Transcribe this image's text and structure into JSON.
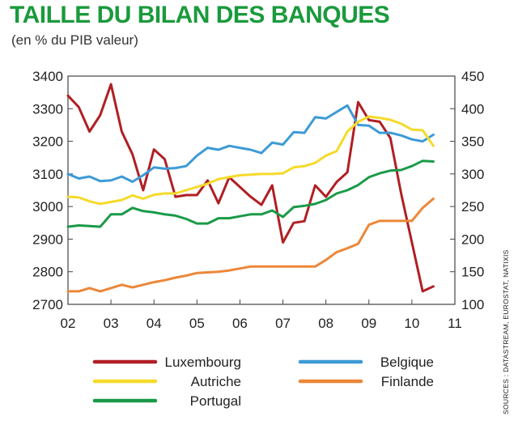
{
  "header": {
    "title": "TAILLE DU BILAN DES BANQUES",
    "subtitle": "(en % du PIB valeur)"
  },
  "sources": "SOURCES : DATASTREAM, EUROSTAT, NATIXIS",
  "colors": {
    "title": "#1a9a3c",
    "Luxembourg": "#b01f24",
    "Belgique": "#3d9ad6",
    "Autriche": "#f5da2a",
    "Finlande": "#ec8738",
    "Portugal": "#1a9a48"
  },
  "chart_data": {
    "type": "line",
    "title": "TAILLE DU BILAN DES BANQUES",
    "subtitle": "(en % du PIB valeur)",
    "x_ticks": [
      "02",
      "03",
      "04",
      "05",
      "06",
      "07",
      "08",
      "09",
      "10",
      "11"
    ],
    "xlim": [
      2002,
      2011
    ],
    "y_left": {
      "ticks": [
        2700,
        2800,
        2900,
        3000,
        3100,
        3200,
        3300,
        3400
      ],
      "lim": [
        2700,
        3400
      ],
      "applies_to": [
        "Luxembourg"
      ]
    },
    "y_right": {
      "ticks": [
        100,
        150,
        200,
        250,
        300,
        350,
        400,
        450
      ],
      "lim": [
        100,
        450
      ],
      "applies_to": [
        "Belgique",
        "Autriche",
        "Finlande",
        "Portugal"
      ]
    },
    "grid": false,
    "legend_position": "bottom",
    "series": [
      {
        "name": "Luxembourg",
        "axis": "left",
        "color": "#b01f24",
        "points": [
          [
            2002.0,
            3340
          ],
          [
            2002.25,
            3305
          ],
          [
            2002.5,
            3230
          ],
          [
            2002.75,
            3280
          ],
          [
            2003.0,
            3375
          ],
          [
            2003.25,
            3230
          ],
          [
            2003.5,
            3160
          ],
          [
            2003.75,
            3050
          ],
          [
            2004.0,
            3175
          ],
          [
            2004.25,
            3145
          ],
          [
            2004.5,
            3030
          ],
          [
            2004.75,
            3035
          ],
          [
            2005.0,
            3035
          ],
          [
            2005.25,
            3080
          ],
          [
            2005.5,
            3010
          ],
          [
            2005.75,
            3090
          ],
          [
            2006.0,
            3060
          ],
          [
            2006.25,
            3030
          ],
          [
            2006.5,
            3005
          ],
          [
            2006.75,
            3065
          ],
          [
            2007.0,
            2890
          ],
          [
            2007.25,
            2950
          ],
          [
            2007.5,
            2955
          ],
          [
            2007.75,
            3065
          ],
          [
            2008.0,
            3030
          ],
          [
            2008.25,
            3075
          ],
          [
            2008.5,
            3105
          ],
          [
            2008.75,
            3320
          ],
          [
            2009.0,
            3265
          ],
          [
            2009.25,
            3260
          ],
          [
            2009.5,
            3210
          ],
          [
            2009.75,
            3040
          ],
          [
            2010.0,
            2890
          ],
          [
            2010.25,
            2740
          ],
          [
            2010.5,
            2755
          ]
        ]
      },
      {
        "name": "Belgique",
        "axis": "right",
        "color": "#3d9ad6",
        "points": [
          [
            2002.0,
            300
          ],
          [
            2002.25,
            293
          ],
          [
            2002.5,
            296
          ],
          [
            2002.75,
            289
          ],
          [
            2003.0,
            290
          ],
          [
            2003.25,
            296
          ],
          [
            2003.5,
            288
          ],
          [
            2003.75,
            298
          ],
          [
            2004.0,
            310
          ],
          [
            2004.25,
            308
          ],
          [
            2004.5,
            309
          ],
          [
            2004.75,
            312
          ],
          [
            2005.0,
            328
          ],
          [
            2005.25,
            340
          ],
          [
            2005.5,
            337
          ],
          [
            2005.75,
            343
          ],
          [
            2006.0,
            340
          ],
          [
            2006.25,
            337
          ],
          [
            2006.5,
            332
          ],
          [
            2006.75,
            348
          ],
          [
            2007.0,
            345
          ],
          [
            2007.25,
            364
          ],
          [
            2007.5,
            363
          ],
          [
            2007.75,
            387
          ],
          [
            2008.0,
            385
          ],
          [
            2008.25,
            395
          ],
          [
            2008.5,
            405
          ],
          [
            2008.75,
            375
          ],
          [
            2009.0,
            374
          ],
          [
            2009.25,
            363
          ],
          [
            2009.5,
            363
          ],
          [
            2009.75,
            359
          ],
          [
            2010.0,
            353
          ],
          [
            2010.25,
            350
          ],
          [
            2010.5,
            360
          ]
        ]
      },
      {
        "name": "Autriche",
        "axis": "right",
        "color": "#f5da2a",
        "points": [
          [
            2002.0,
            265
          ],
          [
            2002.25,
            264
          ],
          [
            2002.5,
            258
          ],
          [
            2002.75,
            254
          ],
          [
            2003.0,
            257
          ],
          [
            2003.25,
            260
          ],
          [
            2003.5,
            267
          ],
          [
            2003.75,
            262
          ],
          [
            2004.0,
            268
          ],
          [
            2004.25,
            270
          ],
          [
            2004.5,
            270
          ],
          [
            2004.75,
            275
          ],
          [
            2005.0,
            280
          ],
          [
            2005.25,
            285
          ],
          [
            2005.5,
            292
          ],
          [
            2005.75,
            295
          ],
          [
            2006.0,
            298
          ],
          [
            2006.25,
            299
          ],
          [
            2006.5,
            300
          ],
          [
            2006.75,
            300
          ],
          [
            2007.0,
            301
          ],
          [
            2007.25,
            310
          ],
          [
            2007.5,
            312
          ],
          [
            2007.75,
            317
          ],
          [
            2008.0,
            328
          ],
          [
            2008.25,
            335
          ],
          [
            2008.5,
            365
          ],
          [
            2008.75,
            380
          ],
          [
            2009.0,
            388
          ],
          [
            2009.25,
            386
          ],
          [
            2009.5,
            383
          ],
          [
            2009.75,
            377
          ],
          [
            2010.0,
            368
          ],
          [
            2010.25,
            367
          ],
          [
            2010.5,
            343
          ]
        ]
      },
      {
        "name": "Finlande",
        "axis": "right",
        "color": "#ec8738",
        "points": [
          [
            2002.0,
            120
          ],
          [
            2002.25,
            120
          ],
          [
            2002.5,
            125
          ],
          [
            2002.75,
            120
          ],
          [
            2003.0,
            125
          ],
          [
            2003.25,
            130
          ],
          [
            2003.5,
            126
          ],
          [
            2003.75,
            130
          ],
          [
            2004.0,
            134
          ],
          [
            2004.25,
            137
          ],
          [
            2004.5,
            141
          ],
          [
            2004.75,
            144
          ],
          [
            2005.0,
            148
          ],
          [
            2005.25,
            149
          ],
          [
            2005.5,
            150
          ],
          [
            2005.75,
            152
          ],
          [
            2006.0,
            155
          ],
          [
            2006.25,
            158
          ],
          [
            2006.5,
            158
          ],
          [
            2006.75,
            158
          ],
          [
            2007.0,
            158
          ],
          [
            2007.25,
            158
          ],
          [
            2007.5,
            158
          ],
          [
            2007.75,
            158
          ],
          [
            2008.0,
            168
          ],
          [
            2008.25,
            180
          ],
          [
            2008.5,
            186
          ],
          [
            2008.75,
            193
          ],
          [
            2009.0,
            222
          ],
          [
            2009.25,
            228
          ],
          [
            2009.5,
            228
          ],
          [
            2009.75,
            228
          ],
          [
            2010.0,
            228
          ],
          [
            2010.25,
            248
          ],
          [
            2010.5,
            262
          ]
        ]
      },
      {
        "name": "Portugal",
        "axis": "right",
        "color": "#1a9a48",
        "points": [
          [
            2002.0,
            219
          ],
          [
            2002.25,
            221
          ],
          [
            2002.5,
            220
          ],
          [
            2002.75,
            219
          ],
          [
            2003.0,
            238
          ],
          [
            2003.25,
            238
          ],
          [
            2003.5,
            248
          ],
          [
            2003.75,
            243
          ],
          [
            2004.0,
            241
          ],
          [
            2004.25,
            238
          ],
          [
            2004.5,
            236
          ],
          [
            2004.75,
            231
          ],
          [
            2005.0,
            224
          ],
          [
            2005.25,
            224
          ],
          [
            2005.5,
            232
          ],
          [
            2005.75,
            232
          ],
          [
            2006.0,
            235
          ],
          [
            2006.25,
            238
          ],
          [
            2006.5,
            238
          ],
          [
            2006.75,
            244
          ],
          [
            2007.0,
            234
          ],
          [
            2007.25,
            249
          ],
          [
            2007.5,
            251
          ],
          [
            2007.75,
            254
          ],
          [
            2008.0,
            260
          ],
          [
            2008.25,
            270
          ],
          [
            2008.5,
            275
          ],
          [
            2008.75,
            283
          ],
          [
            2009.0,
            295
          ],
          [
            2009.25,
            301
          ],
          [
            2009.5,
            305
          ],
          [
            2009.75,
            306
          ],
          [
            2010.0,
            312
          ],
          [
            2010.25,
            320
          ],
          [
            2010.5,
            319
          ]
        ]
      }
    ]
  }
}
